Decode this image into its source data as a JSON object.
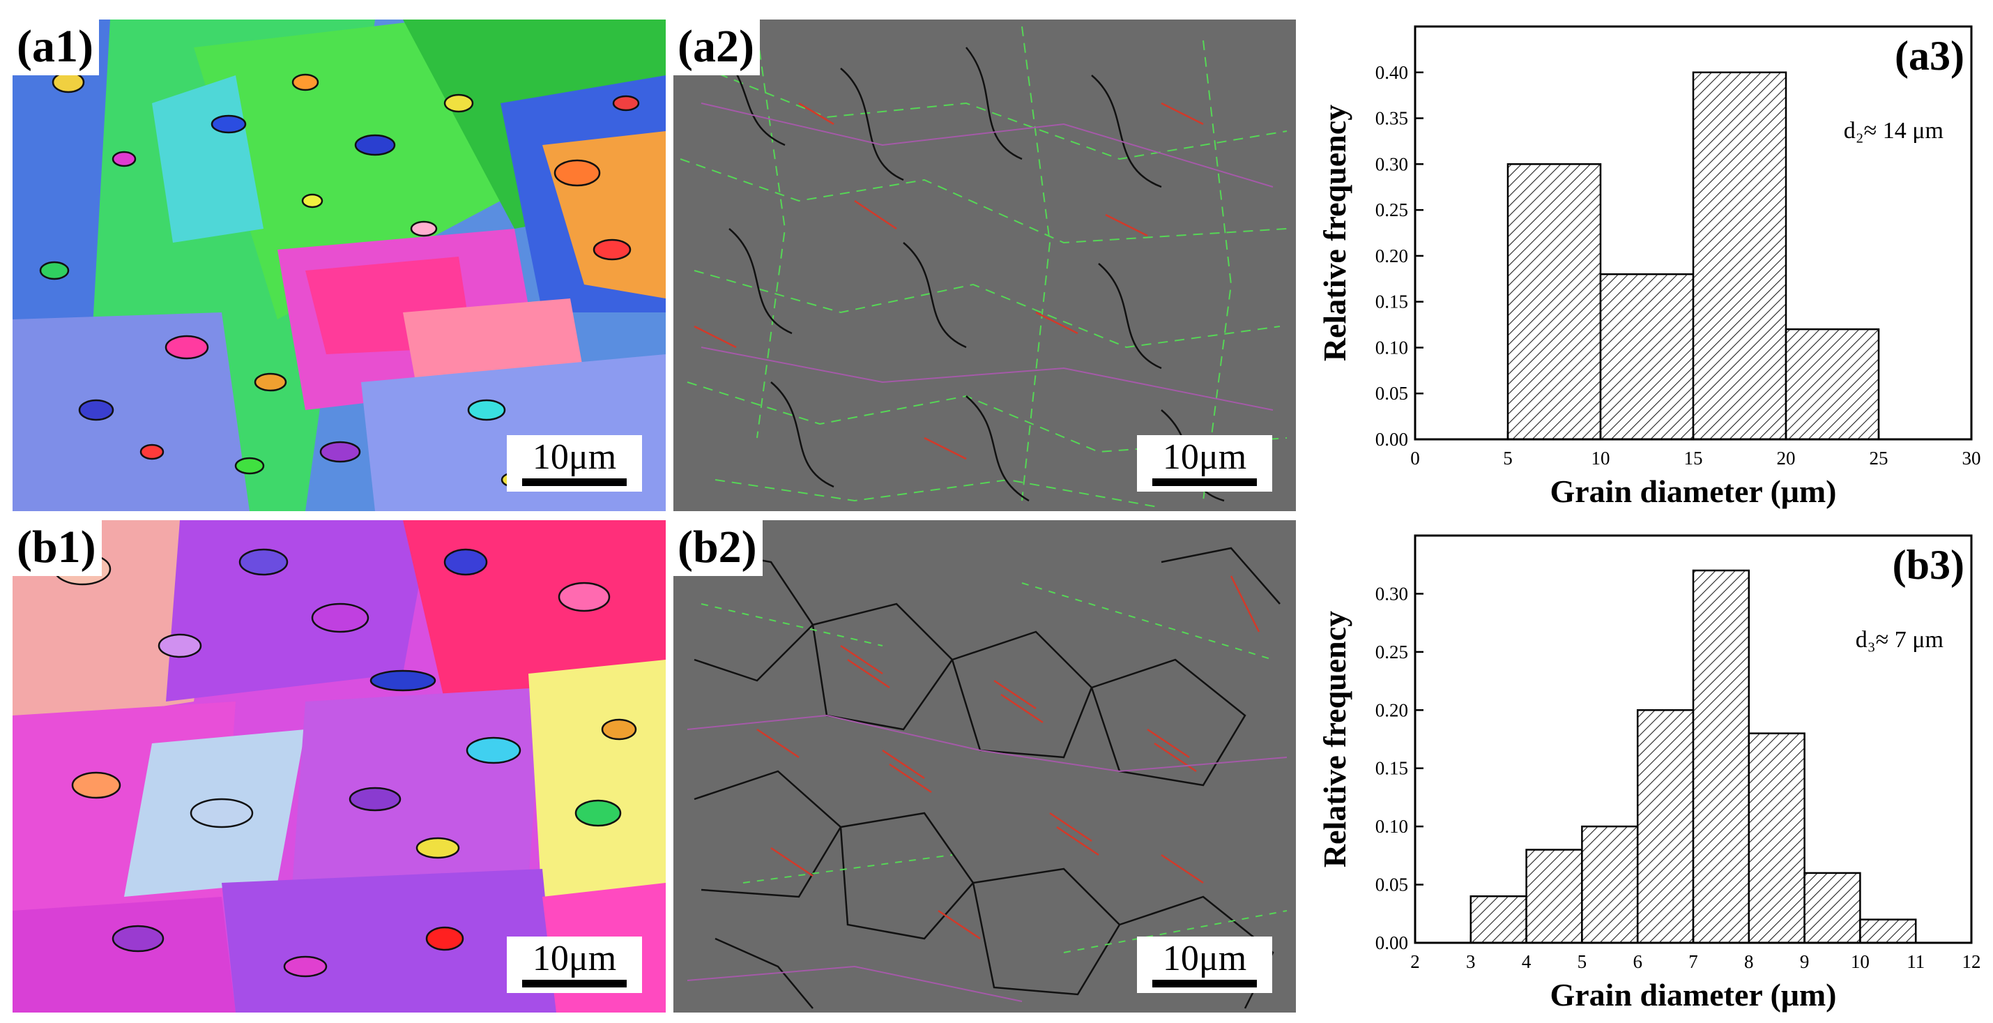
{
  "panels": {
    "a1": {
      "label": "(a1)",
      "scale_label": "10μm"
    },
    "a2": {
      "label": "(a2)",
      "scale_label": "10μm"
    },
    "b1": {
      "label": "(b1)",
      "scale_label": "10μm"
    },
    "b2": {
      "label": "(b2)",
      "scale_label": "10μm"
    }
  },
  "colors": {
    "map_gray": "#6b6b6b",
    "boundary_black": "#111111",
    "boundary_red": "#d23a2a",
    "boundary_green": "#56d656",
    "boundary_purple": "#a45aa8"
  },
  "chart_data": [
    {
      "type": "bar",
      "panel_label": "(a3)",
      "annotation": "d₂≈ 14 μm",
      "xlabel": "Grain diameter (μm)",
      "ylabel": "Relative frequency",
      "xlim": [
        0,
        30
      ],
      "ylim": [
        0,
        0.45
      ],
      "xticks": [
        "0",
        "5",
        "10",
        "15",
        "20",
        "25",
        "30"
      ],
      "yticks": [
        "0.00",
        "0.05",
        "0.10",
        "0.15",
        "0.20",
        "0.25",
        "0.30",
        "0.35",
        "0.40"
      ],
      "bins": [
        {
          "x0": 5,
          "x1": 10,
          "value": 0.3
        },
        {
          "x0": 10,
          "x1": 15,
          "value": 0.18
        },
        {
          "x0": 15,
          "x1": 20,
          "value": 0.4
        },
        {
          "x0": 20,
          "x1": 25,
          "value": 0.12
        }
      ],
      "fill": "hatched"
    },
    {
      "type": "bar",
      "panel_label": "(b3)",
      "annotation": "d₃≈ 7 μm",
      "xlabel": "Grain diameter (μm)",
      "ylabel": "Relative frequency",
      "xlim": [
        2,
        12
      ],
      "ylim": [
        0,
        0.35
      ],
      "xticks": [
        "2",
        "3",
        "4",
        "5",
        "6",
        "7",
        "8",
        "9",
        "10",
        "11",
        "12"
      ],
      "yticks": [
        "0.00",
        "0.05",
        "0.10",
        "0.15",
        "0.20",
        "0.25",
        "0.30"
      ],
      "bins": [
        {
          "x0": 3,
          "x1": 4,
          "value": 0.04
        },
        {
          "x0": 4,
          "x1": 5,
          "value": 0.08
        },
        {
          "x0": 5,
          "x1": 6,
          "value": 0.1
        },
        {
          "x0": 6,
          "x1": 7,
          "value": 0.2
        },
        {
          "x0": 7,
          "x1": 8,
          "value": 0.32
        },
        {
          "x0": 8,
          "x1": 9,
          "value": 0.18
        },
        {
          "x0": 9,
          "x1": 10,
          "value": 0.06
        },
        {
          "x0": 10,
          "x1": 11,
          "value": 0.02
        }
      ],
      "fill": "hatched"
    }
  ]
}
